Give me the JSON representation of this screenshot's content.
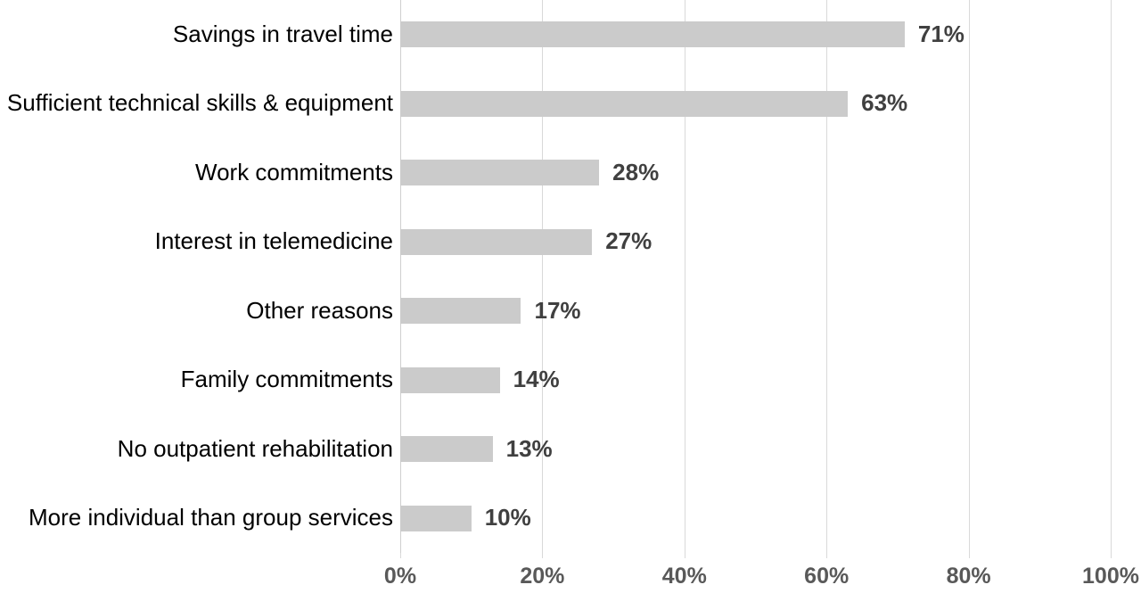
{
  "chart_data": {
    "type": "bar",
    "orientation": "horizontal",
    "title": "",
    "xlabel": "",
    "ylabel": "",
    "categories": [
      "Savings in travel time",
      "Sufficient technical skills & equipment",
      "Work commitments",
      "Interest in telemedicine",
      "Other reasons",
      "Family commitments",
      "No outpatient rehabilitation",
      "More individual than group services"
    ],
    "values": [
      71,
      63,
      28,
      27,
      17,
      14,
      13,
      10
    ],
    "value_labels": [
      "71%",
      "63%",
      "28%",
      "27%",
      "17%",
      "14%",
      "13%",
      "10%"
    ],
    "xlim": [
      0,
      100
    ],
    "x_tick_values": [
      0,
      20,
      40,
      60,
      80,
      100
    ],
    "x_tick_labels": [
      "0%",
      "20%",
      "40%",
      "60%",
      "80%",
      "100%"
    ],
    "grid": "vertical-gridlines-on",
    "legend": "none",
    "colors": {
      "background": "#ffffff",
      "bar_fill": "#cbcbcb",
      "gridline": "#d9d9d9",
      "axis_line": "#cfcfcf",
      "category_label": "#000000",
      "value_label": "#404040",
      "tick_label": "#595959"
    }
  }
}
